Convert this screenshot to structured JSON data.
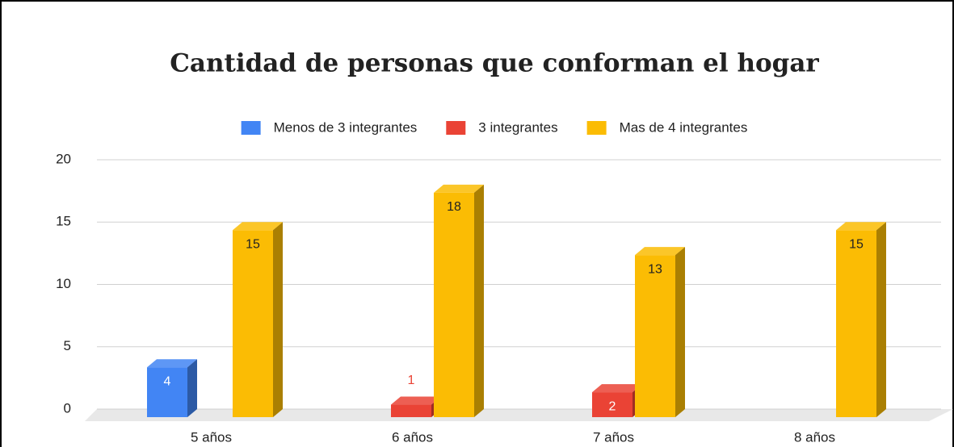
{
  "chart_data": {
    "type": "bar3d",
    "title": "Cantidad de personas que conforman el hogar",
    "categories": [
      "5 años",
      "6 años",
      "7 años",
      "8 años"
    ],
    "series": [
      {
        "name": "Menos de 3 integrantes",
        "color": "#4285f4",
        "values": [
          4,
          null,
          null,
          null
        ]
      },
      {
        "name": "3 integrantes",
        "color": "#ea4335",
        "values": [
          null,
          1,
          2,
          null
        ]
      },
      {
        "name": "Mas de 4 integrantes",
        "color": "#fbbc04",
        "values": [
          15,
          18,
          13,
          15
        ]
      }
    ],
    "ylim": [
      0,
      20
    ],
    "yticks": [
      0,
      5,
      10,
      15,
      20
    ],
    "grid": true,
    "legend": "top"
  }
}
